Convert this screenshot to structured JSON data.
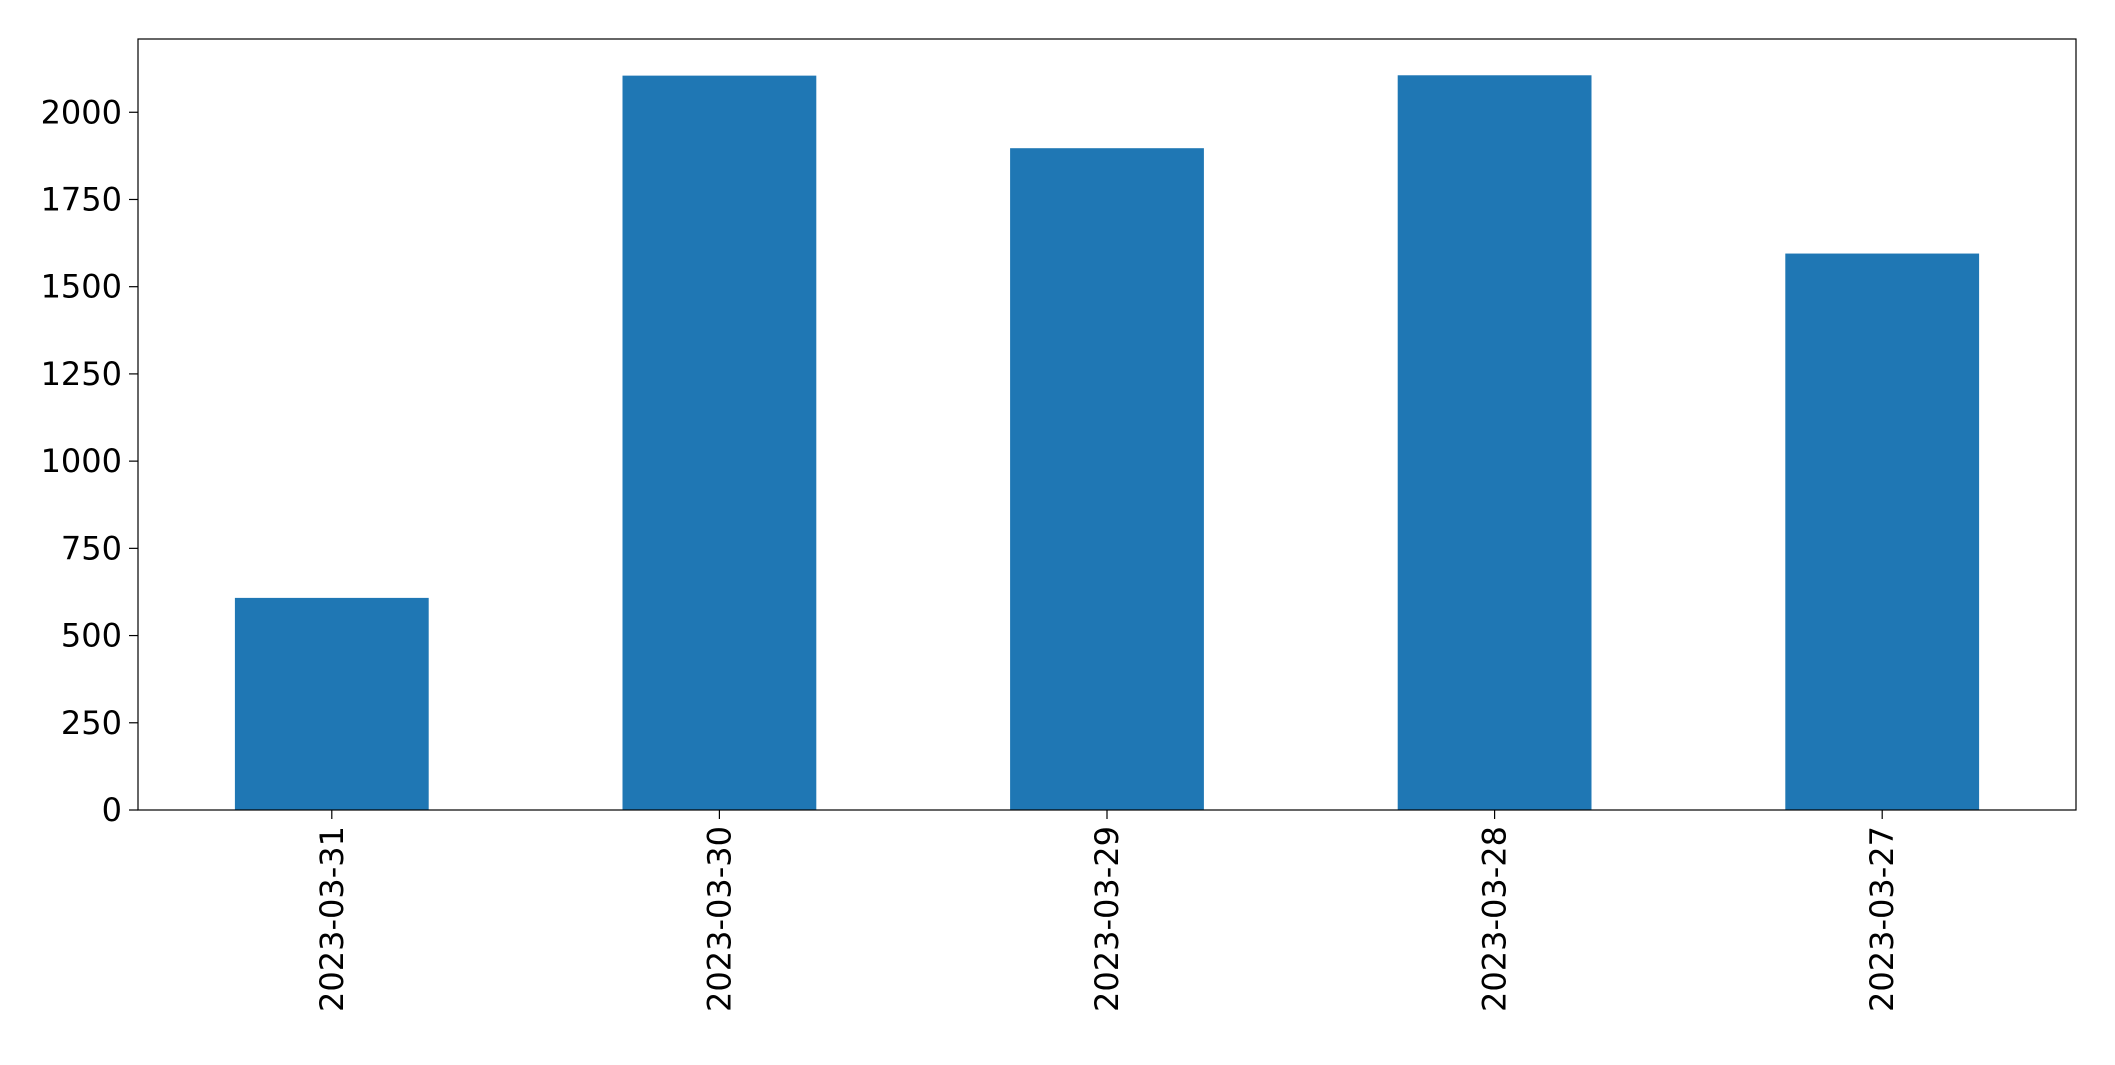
{
  "chart_data": {
    "type": "bar",
    "title": "",
    "xlabel": "",
    "ylabel": "",
    "categories": [
      "2023-03-31",
      "2023-03-30",
      "2023-03-29",
      "2023-03-28",
      "2023-03-27"
    ],
    "values": [
      608,
      2105,
      1897,
      2106,
      1595
    ],
    "ylim": [
      0,
      2210
    ],
    "yticks": [
      0,
      250,
      500,
      750,
      1000,
      1250,
      1500,
      1750,
      2000
    ],
    "ytick_labels": [
      "0",
      "250",
      "500",
      "750",
      "1000",
      "1250",
      "1500",
      "1750",
      "2000"
    ],
    "grid": false,
    "legend": "none",
    "bar_color": "#1f77b4",
    "x_tick_rotation": "vertical"
  }
}
